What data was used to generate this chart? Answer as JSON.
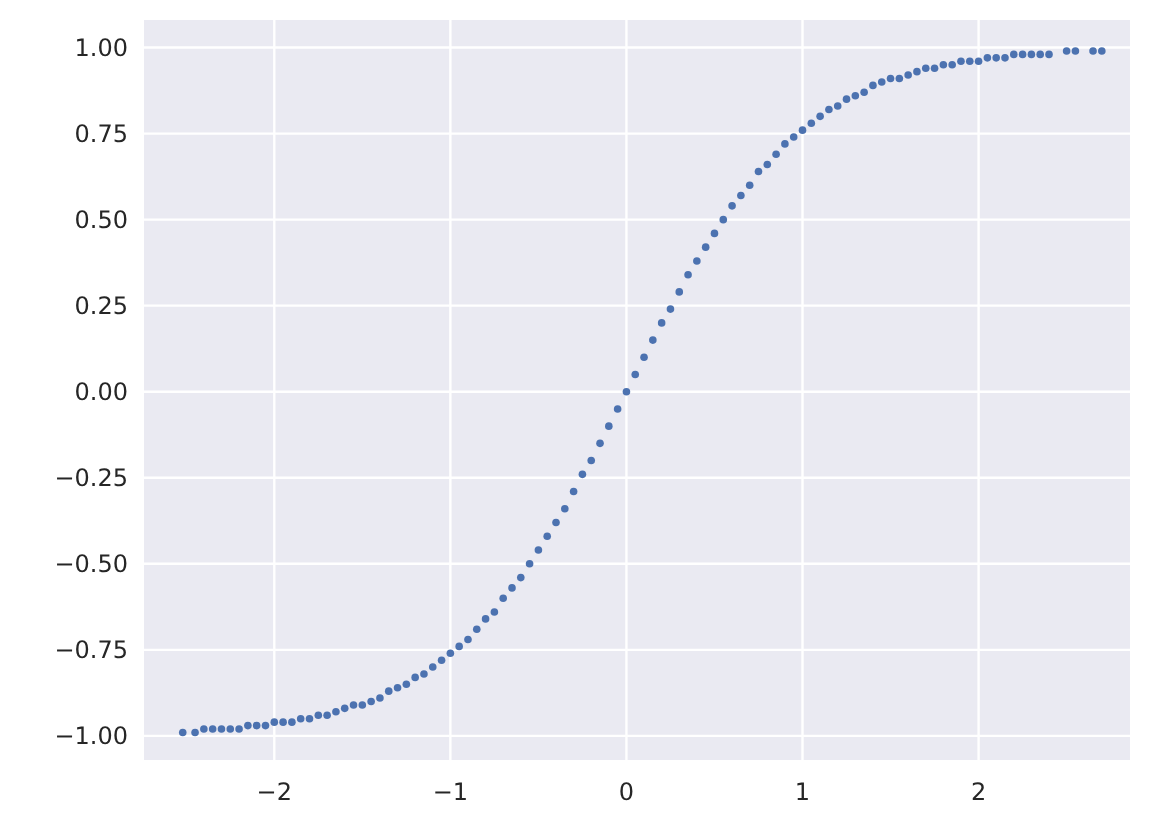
{
  "chart_data": {
    "type": "scatter",
    "xlim": [
      -2.74,
      2.86
    ],
    "ylim": [
      -1.07,
      1.08
    ],
    "xticks": [
      {
        "value": -2,
        "label": "−2"
      },
      {
        "value": -1,
        "label": "−1"
      },
      0,
      1,
      2
    ],
    "yticks": [
      {
        "value": -1,
        "label": "−1.00"
      },
      {
        "value": -0.75,
        "label": "−0.75"
      },
      {
        "value": -0.5,
        "label": "−0.50"
      },
      {
        "value": -0.25,
        "label": "−0.25"
      },
      {
        "value": 0,
        "label": "0.00"
      },
      {
        "value": 0.25,
        "label": "0.25"
      },
      {
        "value": 0.5,
        "label": "0.50"
      },
      {
        "value": 0.75,
        "label": "0.75"
      },
      {
        "value": 1,
        "label": "1.00"
      }
    ],
    "grid": true,
    "marker": "circle",
    "series": [
      {
        "color": "#4c72b0",
        "x": [
          -2.52,
          -2.45,
          -2.4,
          -2.35,
          -2.3,
          -2.25,
          -2.2,
          -2.15,
          -2.1,
          -2.05,
          -2,
          -1.95,
          -1.9,
          -1.85,
          -1.8,
          -1.75,
          -1.7,
          -1.65,
          -1.6,
          -1.55,
          -1.5,
          -1.45,
          -1.4,
          -1.35,
          -1.3,
          -1.25,
          -1.2,
          -1.15,
          -1.1,
          -1.05,
          -1,
          -0.95,
          -0.9,
          -0.85,
          -0.8,
          -0.75,
          -0.7,
          -0.65,
          -0.6,
          -0.55,
          -0.5,
          -0.45,
          -0.4,
          -0.35,
          -0.3,
          -0.25,
          -0.2,
          -0.15,
          -0.1,
          -0.05,
          0,
          0.05,
          0.1,
          0.15,
          0.2,
          0.25,
          0.3,
          0.35,
          0.4,
          0.45,
          0.5,
          0.55,
          0.6,
          0.65,
          0.7,
          0.75,
          0.8,
          0.85,
          0.9,
          0.95,
          1,
          1.05,
          1.1,
          1.15,
          1.2,
          1.25,
          1.3,
          1.35,
          1.4,
          1.45,
          1.5,
          1.55,
          1.6,
          1.65,
          1.7,
          1.75,
          1.8,
          1.85,
          1.9,
          1.95,
          2,
          2.05,
          2.1,
          2.15,
          2.2,
          2.25,
          2.3,
          2.35,
          2.4,
          2.5,
          2.55,
          2.65,
          2.7
        ],
        "values": [
          -0.99,
          -0.99,
          -0.98,
          -0.98,
          -0.98,
          -0.98,
          -0.98,
          -0.97,
          -0.97,
          -0.97,
          -0.96,
          -0.96,
          -0.96,
          -0.95,
          -0.95,
          -0.94,
          -0.94,
          -0.93,
          -0.92,
          -0.91,
          -0.91,
          -0.9,
          -0.89,
          -0.87,
          -0.86,
          -0.85,
          -0.83,
          -0.82,
          -0.8,
          -0.78,
          -0.76,
          -0.74,
          -0.72,
          -0.69,
          -0.66,
          -0.64,
          -0.6,
          -0.57,
          -0.54,
          -0.5,
          -0.46,
          -0.42,
          -0.38,
          -0.34,
          -0.29,
          -0.24,
          -0.2,
          -0.15,
          -0.1,
          -0.05,
          0,
          0.05,
          0.1,
          0.15,
          0.2,
          0.24,
          0.29,
          0.34,
          0.38,
          0.42,
          0.46,
          0.5,
          0.54,
          0.57,
          0.6,
          0.64,
          0.66,
          0.69,
          0.72,
          0.74,
          0.76,
          0.78,
          0.8,
          0.82,
          0.83,
          0.85,
          0.86,
          0.87,
          0.89,
          0.9,
          0.91,
          0.91,
          0.92,
          0.93,
          0.94,
          0.94,
          0.95,
          0.95,
          0.96,
          0.96,
          0.96,
          0.97,
          0.97,
          0.97,
          0.98,
          0.98,
          0.98,
          0.98,
          0.98,
          0.99,
          0.99,
          0.99,
          0.99
        ]
      }
    ]
  }
}
